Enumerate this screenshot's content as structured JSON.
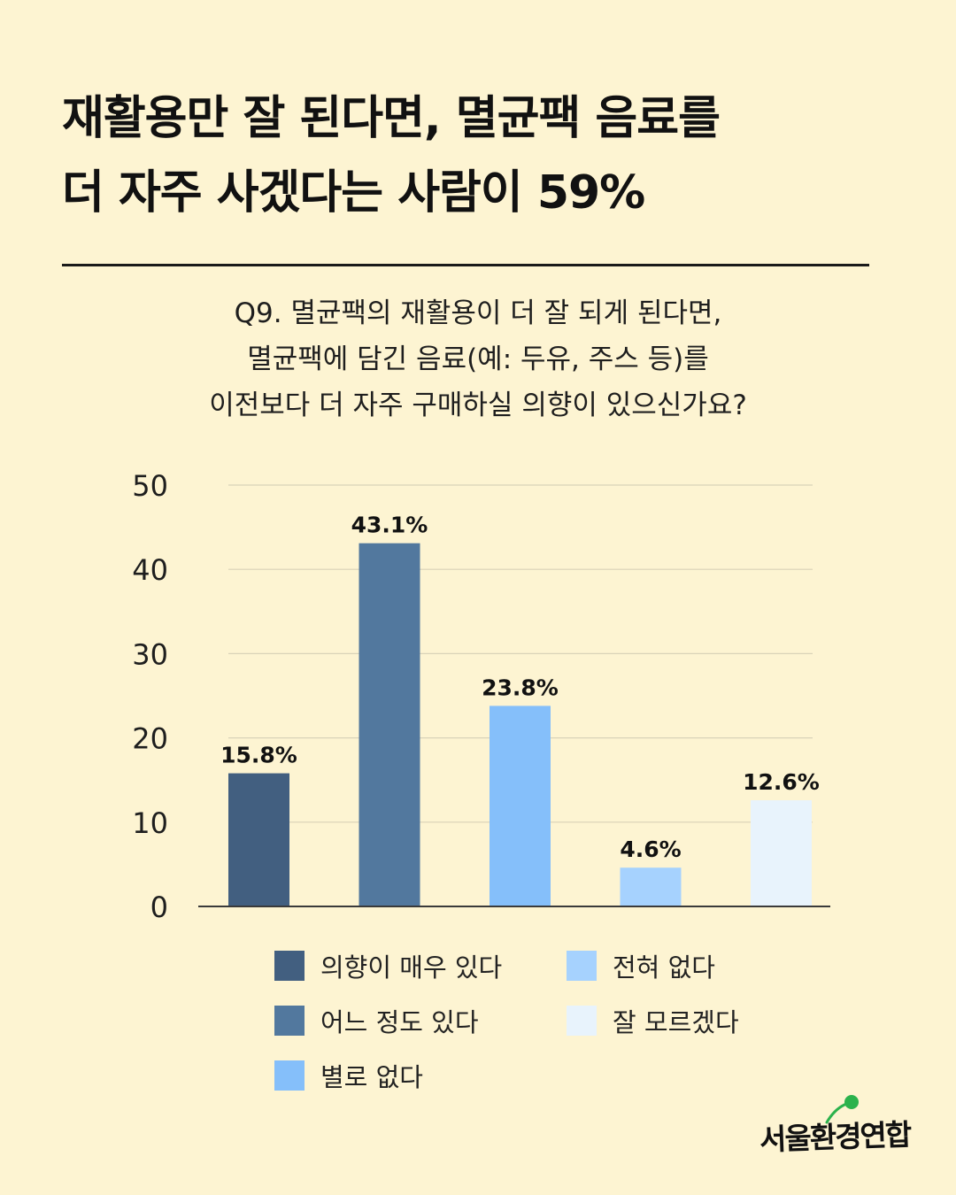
{
  "headline": {
    "line1": "재활용만 잘 된다면, 멸균팩 음료를",
    "line2": "더 자주 사겠다는 사람이 59%"
  },
  "question": {
    "line1": "Q9. 멸균팩의 재활용이 더 잘 되게 된다면,",
    "line2": "멸균팩에 담긴 음료(예: 두유, 주스 등)를",
    "line3": "이전보다 더 자주 구매하실 의향이 있으신가요?"
  },
  "chart_data": {
    "type": "bar",
    "categories": [
      "의향이 매우 있다",
      "어느 정도 있다",
      "별로 없다",
      "전혀 없다",
      "잘 모르겠다"
    ],
    "values": [
      15.8,
      43.1,
      23.8,
      4.6,
      12.6
    ],
    "value_labels": [
      "15.8%",
      "43.1%",
      "23.8%",
      "4.6%",
      "12.6%"
    ],
    "colors": [
      "#425F80",
      "#52789E",
      "#85BFFA",
      "#A6D2FE",
      "#E8F3FC"
    ],
    "ylim": [
      0,
      50
    ],
    "yticks": [
      0,
      10,
      20,
      30,
      40,
      50
    ],
    "grid": true,
    "legend_placement": "bottom"
  },
  "logo": {
    "text": "서울환경연합",
    "leaf_color": "#2BB24C"
  }
}
